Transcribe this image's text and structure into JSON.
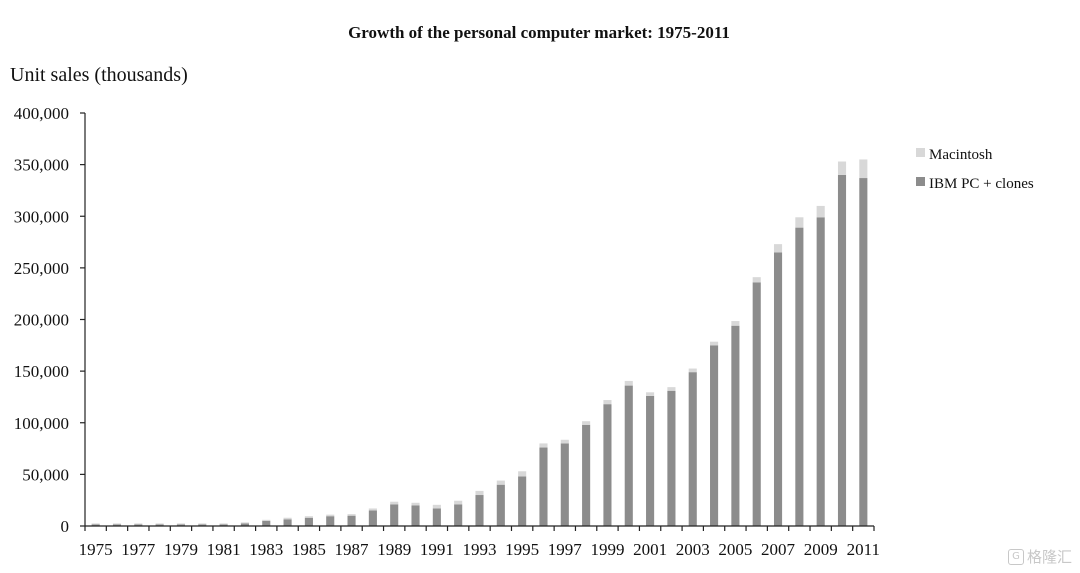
{
  "chart_data": {
    "type": "bar",
    "stacked": true,
    "title": "Growth of the personal computer market: 1975-2011",
    "ylabel": "Unit sales (thousands)",
    "xlabel": "",
    "ylim": [
      0,
      400000
    ],
    "yticks": [
      "0",
      "50,000",
      "100,000",
      "150,000",
      "200,000",
      "250,000",
      "300,000",
      "350,000",
      "400,000"
    ],
    "ytick_values": [
      0,
      50000,
      100000,
      150000,
      200000,
      250000,
      300000,
      350000,
      400000
    ],
    "categories": [
      1975,
      1976,
      1977,
      1978,
      1979,
      1980,
      1981,
      1982,
      1983,
      1984,
      1985,
      1986,
      1987,
      1988,
      1989,
      1990,
      1991,
      1992,
      1993,
      1994,
      1995,
      1996,
      1997,
      1998,
      1999,
      2000,
      2001,
      2002,
      2003,
      2004,
      2005,
      2006,
      2007,
      2008,
      2009,
      2010,
      2011
    ],
    "xtick_labels": [
      "1975",
      "1977",
      "1979",
      "1981",
      "1983",
      "1985",
      "1987",
      "1989",
      "1991",
      "1993",
      "1995",
      "1997",
      "1999",
      "2001",
      "2003",
      "2005",
      "2007",
      "2009",
      "2011"
    ],
    "grid": false,
    "legend_position": "right",
    "series": [
      {
        "name": "IBM PC + clones",
        "color": "#8c8c8c",
        "values": [
          1500,
          1500,
          1500,
          1500,
          1500,
          1500,
          1500,
          2500,
          5000,
          6500,
          8000,
          9500,
          10000,
          15000,
          21000,
          20000,
          17000,
          21000,
          30000,
          40000,
          48000,
          76000,
          80000,
          98000,
          118000,
          136000,
          126000,
          131000,
          149000,
          175000,
          194000,
          236000,
          265000,
          289000,
          299000,
          340000,
          337000
        ]
      },
      {
        "name": "Macintosh",
        "color": "#d8d8d8",
        "values": [
          1000,
          1000,
          1000,
          1000,
          1000,
          1000,
          1000,
          1000,
          1000,
          1500,
          1500,
          1500,
          1500,
          2000,
          2500,
          2500,
          3500,
          3500,
          4000,
          4000,
          5000,
          4000,
          3500,
          3500,
          4000,
          4500,
          3500,
          3500,
          3500,
          3500,
          4500,
          5000,
          8000,
          10000,
          11000,
          13000,
          18000
        ]
      }
    ]
  },
  "watermark": {
    "text": "格隆汇",
    "logo": "G"
  }
}
